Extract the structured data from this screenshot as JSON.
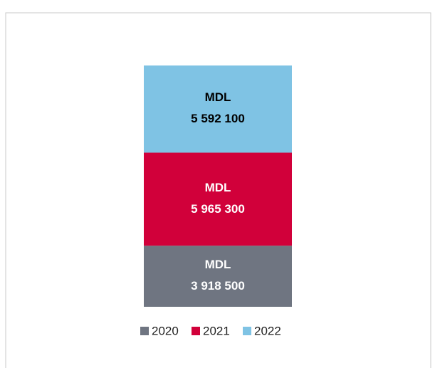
{
  "chart_data": {
    "type": "stacked_bar",
    "categories": [
      null
    ],
    "series": [
      {
        "name": "2020",
        "color": "#6f7581",
        "label_color": "#ffffff",
        "values": [
          3918500
        ],
        "value_labels": [
          "MDL\n3 918 500"
        ]
      },
      {
        "name": "2021",
        "color": "#d1003a",
        "label_color": "#ffffff",
        "values": [
          5965300
        ],
        "value_labels": [
          "MDL\n5 965 300"
        ]
      },
      {
        "name": "2022",
        "color": "#7fc3e4",
        "label_color": "#000000",
        "values": [
          5592100
        ],
        "value_labels": [
          "MDL\n5 592 100"
        ]
      }
    ],
    "legend": "bottom"
  }
}
